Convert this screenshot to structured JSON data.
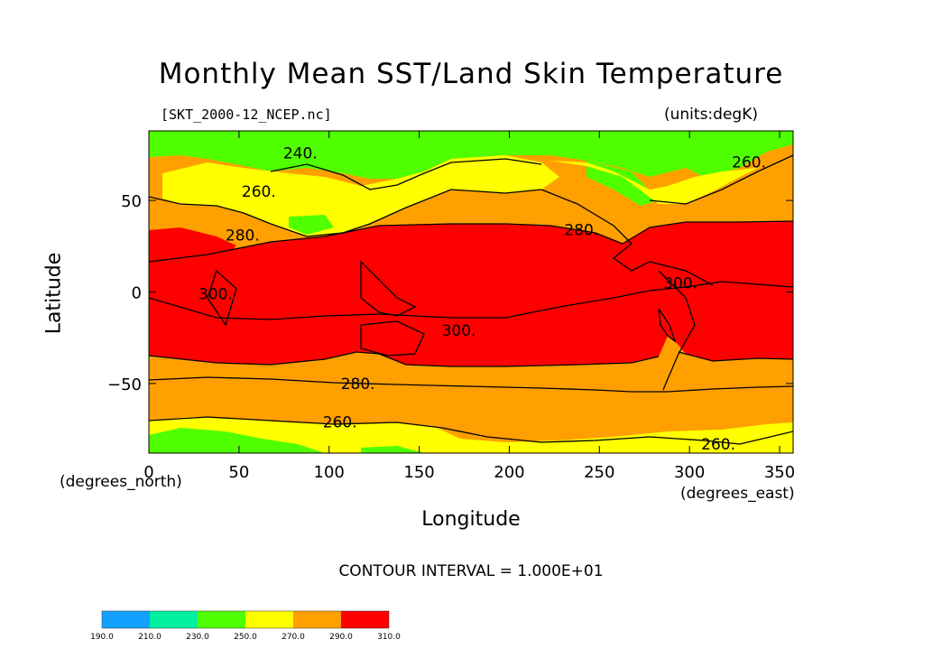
{
  "chart_data": {
    "type": "heatmap",
    "title": "Monthly Mean SST/Land Skin Temperature",
    "subtitle": "[SKT_2000-12_NCEP.nc]",
    "units": "(units:degK)",
    "xlabel": "Longitude",
    "ylabel": "Latitude",
    "x_unit_label": "(degrees_east)",
    "y_unit_label": "(degrees_north)",
    "x_ticks": [
      "0",
      "50",
      "100",
      "150",
      "200",
      "250",
      "300",
      "350"
    ],
    "x_tick_values": [
      0,
      50,
      100,
      150,
      200,
      250,
      300,
      350
    ],
    "y_ticks": [
      "50",
      "0",
      "−50"
    ],
    "y_tick_values": [
      50,
      0,
      -50
    ],
    "xlim": [
      0,
      357.5
    ],
    "ylim": [
      -88,
      88
    ],
    "contour_interval_text": "CONTOUR INTERVAL = 1.000E+01",
    "contour_labels": [
      {
        "text": "240.",
        "lon": 84,
        "lat": 76
      },
      {
        "text": "260.",
        "lon": 61,
        "lat": 55
      },
      {
        "text": "280.",
        "lon": 52,
        "lat": 31
      },
      {
        "text": "280.",
        "lon": 240,
        "lat": 34
      },
      {
        "text": "260.",
        "lon": 333,
        "lat": 71
      },
      {
        "text": "300.",
        "lon": 37,
        "lat": -1
      },
      {
        "text": "300.",
        "lon": 295,
        "lat": 5
      },
      {
        "text": "300.",
        "lon": 172,
        "lat": -21
      },
      {
        "text": "280.",
        "lon": 116,
        "lat": -50
      },
      {
        "text": "260.",
        "lon": 106,
        "lat": -71
      },
      {
        "text": "260.",
        "lon": 316,
        "lat": -83
      }
    ],
    "colorbar": {
      "levels": [
        "190.0",
        "210.0",
        "230.0",
        "250.0",
        "270.0",
        "290.0",
        "310.0"
      ],
      "colors": [
        "#14a0ff",
        "#00f0a0",
        "#50ff00",
        "#ffff00",
        "#ffa000",
        "#ff0000"
      ]
    },
    "fill_colors": {
      "below_250": "#50ff00",
      "250_270": "#ffff00",
      "270_290": "#ffa000",
      "above_290": "#ff0000"
    }
  }
}
